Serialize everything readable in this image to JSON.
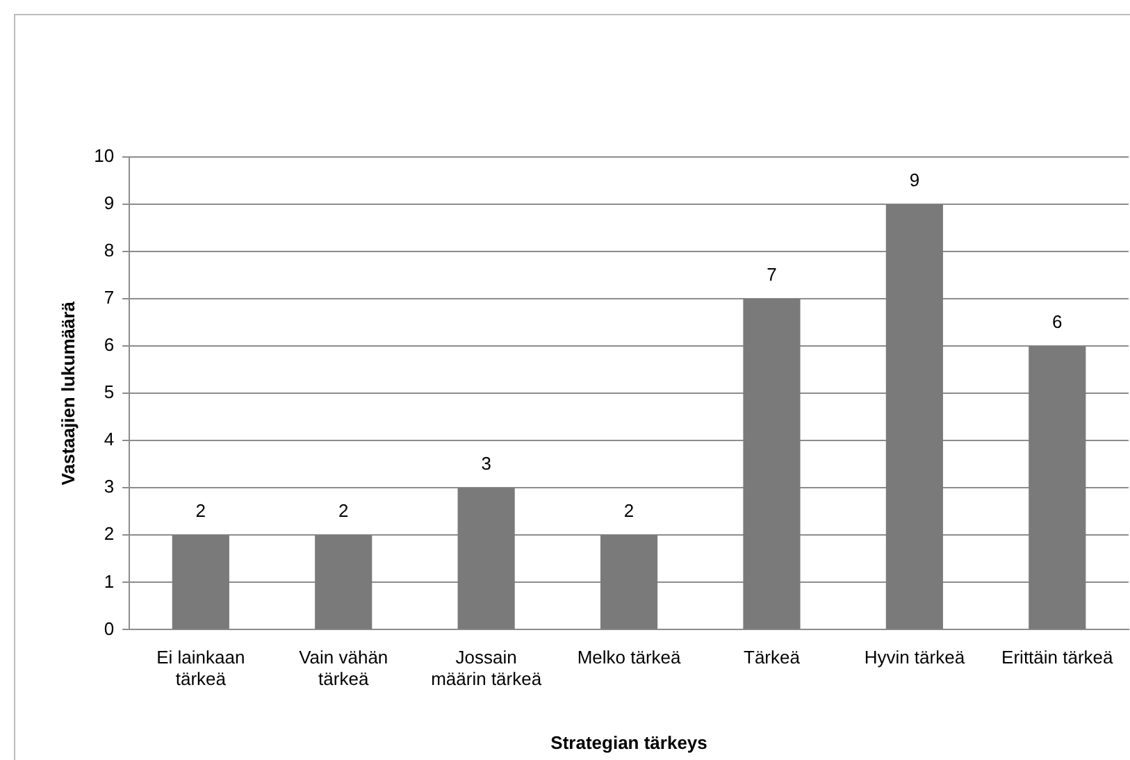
{
  "chart_data": {
    "type": "bar",
    "xlabel": "Strategian tärkeys",
    "ylabel": "Vastaajien lukumäärä",
    "categories": [
      "Ei lainkaan tärkeä",
      "Vain vähän tärkeä",
      "Jossain määrin tärkeä",
      "Melko tärkeä",
      "Tärkeä",
      "Hyvin tärkeä",
      "Erittäin tärkeä"
    ],
    "values": [
      2,
      2,
      3,
      2,
      7,
      9,
      6
    ],
    "color": "#7a7a7a",
    "ylim": [
      0,
      10
    ],
    "yticks": [
      0,
      1,
      2,
      3,
      4,
      5,
      6,
      7,
      8,
      9,
      10
    ],
    "grid": "y",
    "legend": false,
    "data_labels": true
  }
}
